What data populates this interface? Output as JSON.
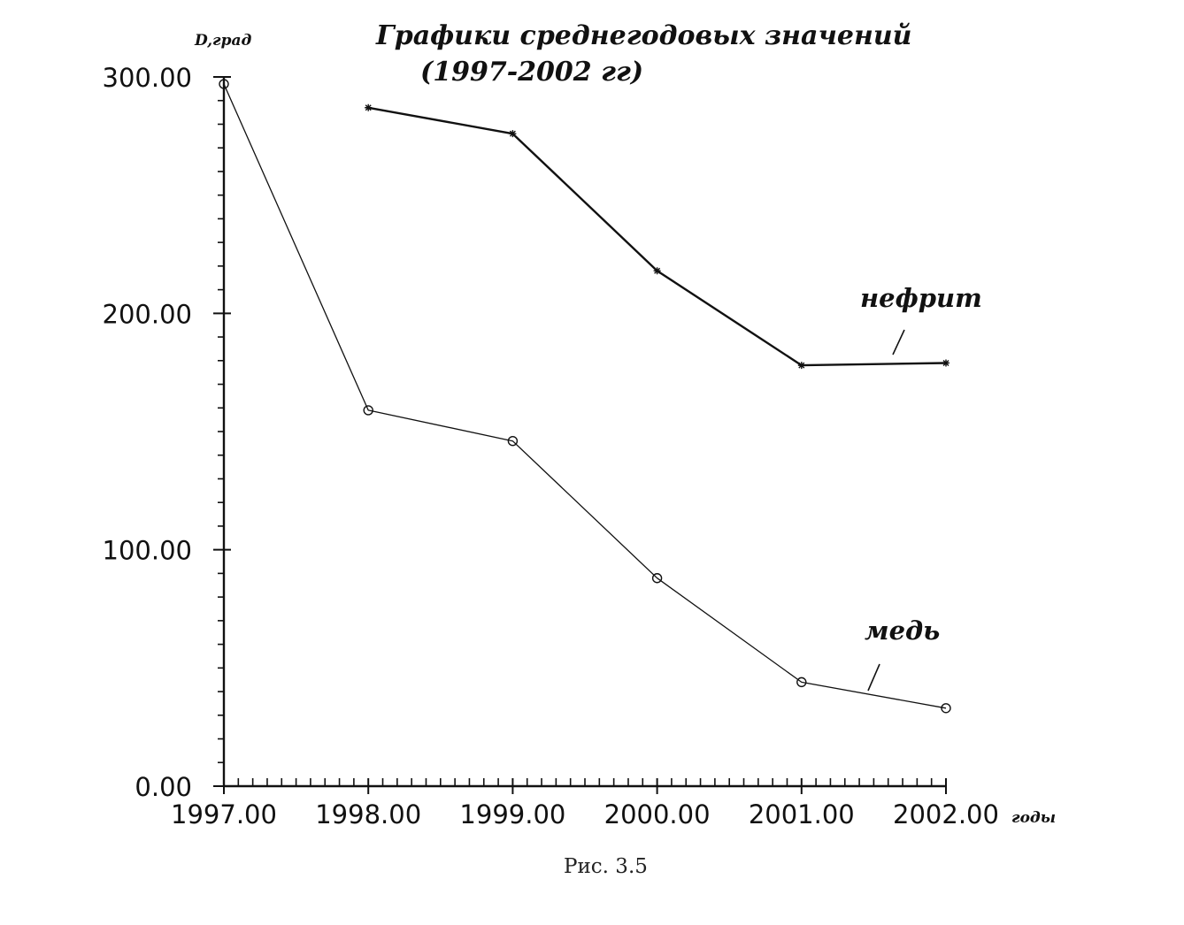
{
  "chart_data": {
    "type": "line",
    "title": "Графики среднегодовых значений",
    "subtitle": "(1997-2002 гг)",
    "ylabel": "D,град",
    "xlabel": "годы",
    "caption": "Рис. 3.5",
    "xlim": [
      1997,
      2002
    ],
    "ylim": [
      0,
      300
    ],
    "x_ticks": [
      "1997.00",
      "1998.00",
      "1999.00",
      "2000.00",
      "2001.00",
      "2002.00"
    ],
    "y_ticks": [
      "0.00",
      "100.00",
      "200.00",
      "300.00"
    ],
    "grid": false,
    "series": [
      {
        "name": "нефрит",
        "marker": "star",
        "stroke_width": 2.4,
        "points": [
          {
            "x": 1998,
            "y": 287
          },
          {
            "x": 1999,
            "y": 276
          },
          {
            "x": 2000,
            "y": 218
          },
          {
            "x": 2001,
            "y": 178
          },
          {
            "x": 2002,
            "y": 179
          }
        ]
      },
      {
        "name": "медь",
        "marker": "circle",
        "stroke_width": 1.3,
        "points": [
          {
            "x": 1997,
            "y": 297
          },
          {
            "x": 1998,
            "y": 159
          },
          {
            "x": 1999,
            "y": 146
          },
          {
            "x": 2000,
            "y": 88
          },
          {
            "x": 2001,
            "y": 44
          },
          {
            "x": 2002,
            "y": 33
          }
        ]
      }
    ]
  }
}
